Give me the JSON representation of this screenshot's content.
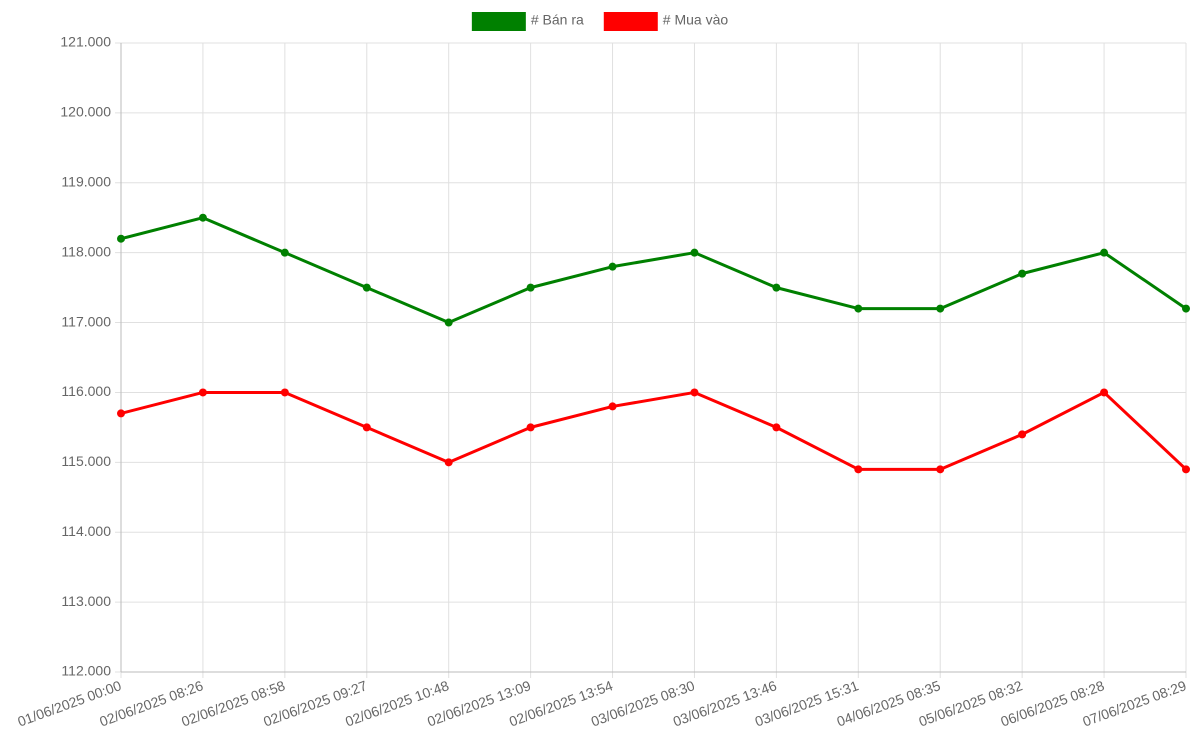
{
  "chart_data": {
    "type": "line",
    "categories": [
      "01/06/2025 00:00",
      "02/06/2025 08:26",
      "02/06/2025 08:58",
      "02/06/2025 09:27",
      "02/06/2025 10:48",
      "02/06/2025 13:09",
      "02/06/2025 13:54",
      "03/06/2025 08:30",
      "03/06/2025 13:46",
      "03/06/2025 15:31",
      "04/06/2025 08:35",
      "05/06/2025 08:32",
      "06/06/2025 08:28",
      "07/06/2025 08:29"
    ],
    "series": [
      {
        "name": "# Bán ra",
        "color": "#008000",
        "values": [
          118200,
          118500,
          118000,
          117500,
          117000,
          117500,
          117800,
          118000,
          117500,
          117200,
          117200,
          117700,
          118000,
          117200
        ]
      },
      {
        "name": "# Mua vào",
        "color": "#ff0000",
        "values": [
          115700,
          116000,
          116000,
          115500,
          115000,
          115500,
          115800,
          116000,
          115500,
          114900,
          114900,
          115400,
          116000,
          114900
        ]
      }
    ],
    "ylim": [
      112000,
      121000
    ],
    "yticks": [
      {
        "value": 112000,
        "label": "112.000"
      },
      {
        "value": 113000,
        "label": "113.000"
      },
      {
        "value": 114000,
        "label": "114.000"
      },
      {
        "value": 115000,
        "label": "115.000"
      },
      {
        "value": 116000,
        "label": "116.000"
      },
      {
        "value": 117000,
        "label": "117.000"
      },
      {
        "value": 118000,
        "label": "118.000"
      },
      {
        "value": 119000,
        "label": "119.000"
      },
      {
        "value": 120000,
        "label": "120.000"
      },
      {
        "value": 121000,
        "label": "121.000"
      }
    ],
    "grid": true,
    "legend": "top"
  }
}
